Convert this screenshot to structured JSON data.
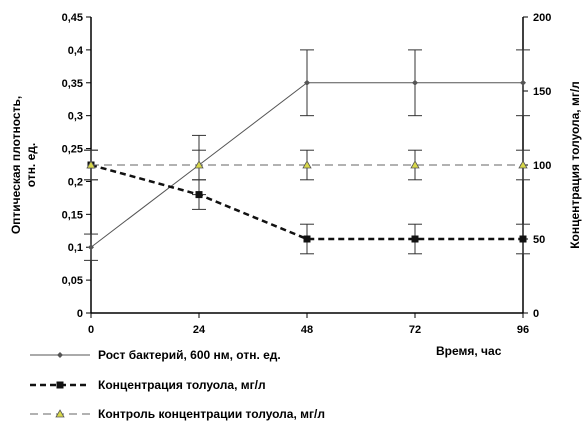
{
  "chart_data": {
    "type": "line",
    "title": "",
    "xlabel": "Время, час",
    "ylabel_left_lines": [
      "Оптическая плотность,",
      "отн. ед."
    ],
    "ylabel_right": "Концентрация толуола, мг/л",
    "x": [
      0,
      24,
      48,
      72,
      96
    ],
    "x_tick_labels": [
      "0",
      "24",
      "48",
      "72",
      "96"
    ],
    "xlim": [
      0,
      96
    ],
    "y_left": {
      "lim": [
        0,
        0.45
      ],
      "ticks": [
        0,
        0.05,
        0.1,
        0.15,
        0.2,
        0.25,
        0.3,
        0.35,
        0.4,
        0.45
      ],
      "tick_labels": [
        "0",
        "0,05",
        "0,1",
        "0,15",
        "0,2",
        "0,25",
        "0,3",
        "0,35",
        "0,4",
        "0,45"
      ]
    },
    "y_right": {
      "lim": [
        0,
        200
      ],
      "ticks": [
        0,
        50,
        100,
        150,
        200
      ],
      "tick_labels": [
        "0",
        "50",
        "100",
        "150",
        "200"
      ]
    },
    "grid": false,
    "legend_position": "bottom-left",
    "series": [
      {
        "name": "Рост бактерий, 600 нм, отн. ед.",
        "axis": "left",
        "style": "solid-thin",
        "marker": "diamond",
        "color": "#555555",
        "values": [
          0.1,
          0.225,
          0.35,
          0.35,
          0.35
        ],
        "errors": [
          0.02,
          0.045,
          0.05,
          0.05,
          0.05
        ]
      },
      {
        "name": "Концентрация толуола, мг/л",
        "axis": "right",
        "style": "dashed-thick",
        "marker": "square",
        "color": "#111111",
        "values": [
          100,
          80,
          50,
          50,
          50
        ],
        "errors": [
          10,
          10,
          10,
          10,
          10
        ]
      },
      {
        "name": "Контроль концентрации толуола, мг/л",
        "axis": "right",
        "style": "dashed-thin",
        "marker": "triangle",
        "color": "#666666",
        "values": [
          100,
          100,
          100,
          100,
          100
        ],
        "errors": [
          10,
          10,
          10,
          10,
          10
        ]
      }
    ]
  }
}
